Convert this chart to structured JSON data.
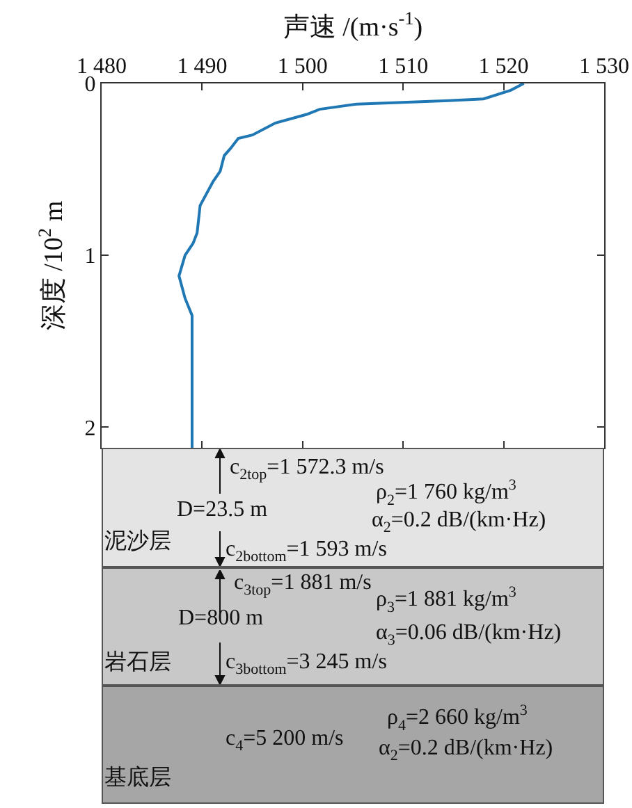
{
  "chart_data": [
    {
      "type": "line",
      "xlabel": "声速 /(m·s$^{-1}$)",
      "ylabel": "深度 /10$^{2}$ m",
      "x": [
        1522,
        1520.7,
        1518,
        1514.5,
        1505.4,
        1501.7,
        1500.4,
        1497.3,
        1495,
        1493.6,
        1492.8,
        1492.2,
        1491.8,
        1491.1,
        1489.8,
        1489.5,
        1489.1,
        1488.3,
        1487.7,
        1488.3,
        1489,
        1489,
        1489,
        1489
      ],
      "values": [
        0,
        0.04,
        0.09,
        0.1,
        0.12,
        0.15,
        0.18,
        0.23,
        0.3,
        0.32,
        0.38,
        0.42,
        0.51,
        0.57,
        0.71,
        0.87,
        0.93,
        1.0,
        1.12,
        1.25,
        1.35,
        1.6,
        1.64,
        2.12
      ],
      "color": "#1f77b4",
      "xlim": [
        1480,
        1530
      ],
      "xticks": [
        {
          "value": 1480,
          "label": "1 480"
        },
        {
          "value": 1490,
          "label": "1 490"
        },
        {
          "value": 1500,
          "label": "1 500"
        },
        {
          "value": 1510,
          "label": "1 510"
        },
        {
          "value": 1520,
          "label": "1 520"
        },
        {
          "value": 1530,
          "label": "1 530"
        }
      ],
      "ylim": [
        2.12,
        0
      ],
      "yticks": [
        0,
        1,
        2
      ],
      "grid": false,
      "marker": "none",
      "line_style": "solid"
    },
    {
      "type": "other",
      "annotations": [
        "c$_{2top}$=1 572.3 m/s",
        "D=23.5 m",
        "ρ$_{2}$=1 760 kg/m$^{3}$",
        "α$_{2}$=0.2 dB/(km·Hz)",
        "泥沙层",
        "c$_{2bottom}$=1 593 m/s",
        "c$_{3top}$=1 881 m/s",
        "D=800 m",
        "ρ$_{3}$=1 881 kg/m$^{3}$",
        "α$_{3}$=0.06 dB/(km·Hz)",
        "岩石层",
        "c$_{3bottom}$=3 245 m/s",
        "ρ$_{4}$=2 660 kg/m$^{3}$",
        "c$_{4}$=5 200 m/s",
        "α$_{2}$=0.2 dB/(km·Hz)",
        "基底层"
      ]
    }
  ]
}
